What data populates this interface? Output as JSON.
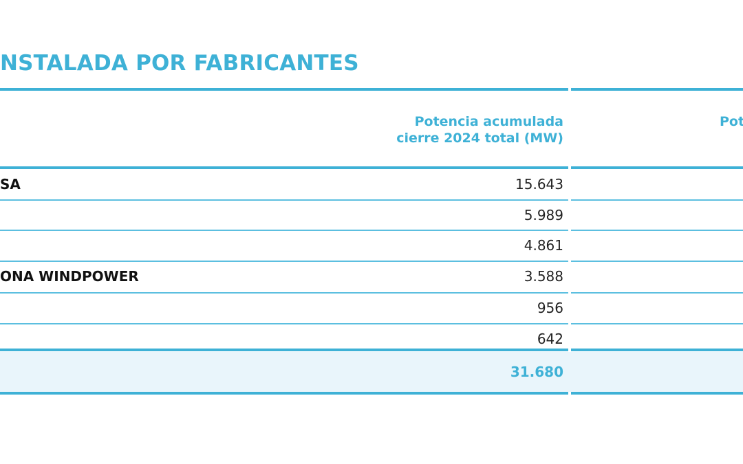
{
  "title": "NSTALADA POR FABRICANTES",
  "table": {
    "headers": [
      "Potencia acumulada",
      "cierre 2024 total (MW)",
      "Pot"
    ],
    "rows": [
      {
        "name": "SA",
        "value": "15.643"
      },
      {
        "value": "5.989"
      },
      {
        "value": "4.861"
      },
      {
        "name": "ONA WINDPOWER",
        "value": "3.588"
      },
      {
        "value": "956"
      },
      {
        "value": "642"
      }
    ],
    "total": "31.680"
  }
}
